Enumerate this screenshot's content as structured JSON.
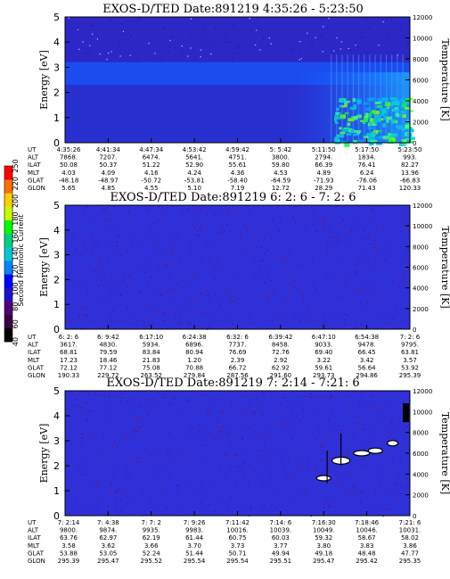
{
  "colorbar": {
    "label": "Second Harmonic Current",
    "ticks": [
      "40",
      "60",
      "80",
      "100",
      "120",
      "140",
      "160",
      "180",
      "200",
      "220",
      "250"
    ],
    "colors": [
      "#000000",
      "#3a0045",
      "#4f007a",
      "#1f10d0",
      "#0000ff",
      "#0086ff",
      "#00c8d8",
      "#00d080",
      "#00ff00",
      "#c8ff00",
      "#ffd000",
      "#ff7000",
      "#ff0000"
    ]
  },
  "chart_data": [
    {
      "type": "heatmap",
      "title": "EXOS-D/TED   Date:891219  4:35:26 - 5:23:50",
      "ylabel": "Energy [eV]",
      "y2label": "Temperature [K]",
      "ylim": [
        0,
        5
      ],
      "y_ticks": [
        "0",
        "1",
        "2",
        "3",
        "4",
        "5"
      ],
      "y2lim": [
        0,
        12000
      ],
      "y2_ticks": [
        "0",
        "2000",
        "4000",
        "6000",
        "8000",
        "10000",
        "12000"
      ],
      "row_labels": [
        "UT",
        "ALT",
        "ILAT",
        "MLT",
        "GLAT",
        "GLON"
      ],
      "columns": [
        [
          "4:35:26",
          "7868.",
          "50.08",
          "4.03",
          "-48.18",
          "5.65"
        ],
        [
          "4:41:34",
          "7207.",
          "50.37",
          "4.09",
          "-48.97",
          "4.85"
        ],
        [
          "4:47:34",
          "6474.",
          "51.22",
          "4.16",
          "-50.72",
          "4.55"
        ],
        [
          "4:53:42",
          "5641.",
          "52.90",
          "4.24",
          "-53.81",
          "5.10"
        ],
        [
          "4:59:42",
          "4751.",
          "55.61",
          "4.36",
          "-58.40",
          "7.19"
        ],
        [
          "5: 5:42",
          "3800.",
          "59.80",
          "4.53",
          "-64.59",
          "12.72"
        ],
        [
          "5:11:50",
          "2794.",
          "66.39",
          "4.89",
          "-71.93",
          "28.29"
        ],
        [
          "5:17:50",
          "1834.",
          "76.41",
          "6.24",
          "-76.06",
          "71.43"
        ],
        [
          "5:23:50",
          "993.",
          "82.27",
          "13.96",
          "-66.83",
          "120.33"
        ]
      ]
    },
    {
      "type": "heatmap",
      "title": "EXOS-D/TED   Date:891219  6: 2: 6 - 7: 2: 6",
      "ylabel": "Energy [eV]",
      "y2label": "Temperature [K]",
      "ylim": [
        0,
        5
      ],
      "y_ticks": [
        "0",
        "1",
        "2",
        "3",
        "4",
        "5"
      ],
      "y2lim": [
        0,
        12000
      ],
      "y2_ticks": [
        "0",
        "2000",
        "4000",
        "6000",
        "8000",
        "10000",
        "12000"
      ],
      "row_labels": [
        "UT",
        "ALT",
        "ILAT",
        "MLT",
        "GLAT",
        "GLON"
      ],
      "columns": [
        [
          "6: 2: 6",
          "3617.",
          "68.81",
          "17.23",
          "72.12",
          "190.33"
        ],
        [
          "6: 9:42",
          "4830.",
          "79.59",
          "18.46",
          "77.12",
          "229.72"
        ],
        [
          "6:17:10",
          "5934.",
          "83.84",
          "21.83",
          "75.08",
          "263.52"
        ],
        [
          "6:24:38",
          "6896.",
          "80.94",
          "1.20",
          "70.88",
          "279.84"
        ],
        [
          "6:32: 6",
          "7737.",
          "76.69",
          "2.39",
          "66.72",
          "287.56"
        ],
        [
          "6:39:42",
          "8458.",
          "72.76",
          "2.92",
          "62.92",
          "291.60"
        ],
        [
          "6:47:10",
          "9033.",
          "69.40",
          "3.22",
          "59.61",
          "293.73"
        ],
        [
          "6:54:38",
          "9478.",
          "66.45",
          "3.42",
          "56.64",
          "294.86"
        ],
        [
          "7: 2: 6",
          "9795.",
          "63.81",
          "3.57",
          "53.92",
          "295.39"
        ]
      ]
    },
    {
      "type": "heatmap",
      "title": "EXOS-D/TED   Date:891219  7: 2:14 - 7:21: 6",
      "ylabel": "Energy [eV]",
      "y2label": "Temperature [K]",
      "ylim": [
        0,
        5
      ],
      "y_ticks": [
        "0",
        "1",
        "2",
        "3",
        "4",
        "5"
      ],
      "y2lim": [
        0,
        12000
      ],
      "y2_ticks": [
        "0",
        "2000",
        "4000",
        "6000",
        "8000",
        "10000",
        "12000"
      ],
      "row_labels": [
        "UT",
        "ALT",
        "ILAT",
        "MLT",
        "GLAT",
        "GLON"
      ],
      "columns": [
        [
          "7: 2:14",
          "9800.",
          "63.76",
          "3.58",
          "53.88",
          "295.39"
        ],
        [
          "7: 4:38",
          "9874.",
          "62.97",
          "3.62",
          "53.05",
          "295.47"
        ],
        [
          "7: 7: 2",
          "9935.",
          "62.19",
          "3.66",
          "52.24",
          "295.52"
        ],
        [
          "7: 9:26",
          "9983.",
          "61.44",
          "3.70",
          "51.44",
          "295.54"
        ],
        [
          "7:11:42",
          "10016.",
          "60.75",
          "3.73",
          "50.71",
          "295.54"
        ],
        [
          "7:14: 6",
          "10039.",
          "60.03",
          "3.77",
          "49.94",
          "295.51"
        ],
        [
          "7:16:30",
          "10049.",
          "59.32",
          "3.80",
          "49.18",
          "295.47"
        ],
        [
          "7:18:46",
          "10046.",
          "58.67",
          "3.83",
          "48.48",
          "295.42"
        ],
        [
          "7:21: 6",
          "10031.",
          "58.02",
          "3.86",
          "47.77",
          "295.35"
        ]
      ]
    }
  ]
}
